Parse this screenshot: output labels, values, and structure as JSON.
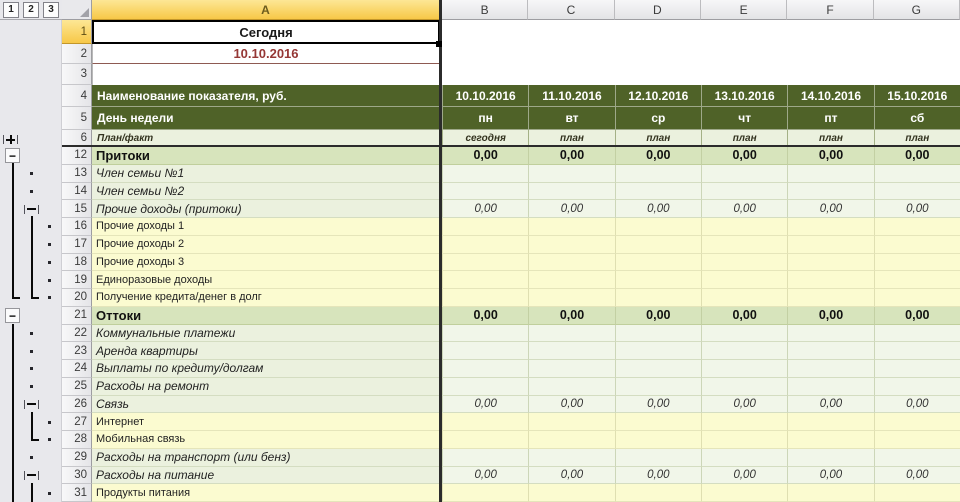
{
  "outline_levels": [
    "1",
    "2",
    "3"
  ],
  "columns": [
    "A",
    "B",
    "C",
    "D",
    "E",
    "F",
    "G"
  ],
  "top_row_nums": [
    "1",
    "2",
    "3",
    "4",
    "5",
    "6"
  ],
  "a1": "Сегодня",
  "a2": "10.10.2016",
  "colors": {
    "dark_green": "#4f6228",
    "med_green": "#d7e4bc",
    "light_green": "#ebf1de",
    "pale_yellow": "#fbfbd0",
    "date_red": "#953735",
    "selection_gold": "#f7c848"
  },
  "header": {
    "indicator_label": "Наименование показателя, руб.",
    "dates": [
      "10.10.2016",
      "11.10.2016",
      "12.10.2016",
      "13.10.2016",
      "14.10.2016",
      "15.10.2016"
    ],
    "weekday_label": "День недели",
    "weekdays": [
      "пн",
      "вт",
      "ср",
      "чт",
      "пт",
      "сб"
    ],
    "planfact_label": "План/факт",
    "planfact": [
      "сегодня",
      "план",
      "план",
      "план",
      "план",
      "план"
    ]
  },
  "row6_marker": "plus1",
  "rows": [
    {
      "num": "12",
      "label": "Притоки",
      "style": "section",
      "marker": "minus1",
      "values": [
        "0,00",
        "0,00",
        "0,00",
        "0,00",
        "0,00",
        "0,00"
      ]
    },
    {
      "num": "13",
      "label": "Член семьи №1",
      "style": "green",
      "marker": "dot2"
    },
    {
      "num": "14",
      "label": "Член семьи №2",
      "style": "green",
      "marker": "dot2"
    },
    {
      "num": "15",
      "label": "Прочие доходы (притоки)",
      "style": "green",
      "marker": "minus2",
      "values": [
        "0,00",
        "0,00",
        "0,00",
        "0,00",
        "0,00",
        "0,00"
      ]
    },
    {
      "num": "16",
      "label": "Прочие доходы 1",
      "style": "yellow",
      "marker": "dot3"
    },
    {
      "num": "17",
      "label": "Прочие доходы 2",
      "style": "yellow",
      "marker": "dot3"
    },
    {
      "num": "18",
      "label": "Прочие доходы 3",
      "style": "yellow",
      "marker": "dot3"
    },
    {
      "num": "19",
      "label": "Единоразовые доходы",
      "style": "yellow",
      "marker": "dot3"
    },
    {
      "num": "20",
      "label": "Получение кредита/денег в долг",
      "style": "yellow",
      "marker": "dot3"
    },
    {
      "num": "21",
      "label": "Оттоки",
      "style": "section",
      "marker": "minus1",
      "values": [
        "0,00",
        "0,00",
        "0,00",
        "0,00",
        "0,00",
        "0,00"
      ]
    },
    {
      "num": "22",
      "label": "Коммунальные платежи",
      "style": "green",
      "marker": "dot2"
    },
    {
      "num": "23",
      "label": "Аренда квартиры",
      "style": "green",
      "marker": "dot2"
    },
    {
      "num": "24",
      "label": "Выплаты по кредиту/долгам",
      "style": "green",
      "marker": "dot2"
    },
    {
      "num": "25",
      "label": "Расходы на ремонт",
      "style": "green",
      "marker": "dot2"
    },
    {
      "num": "26",
      "label": "Связь",
      "style": "green",
      "marker": "minus2",
      "values": [
        "0,00",
        "0,00",
        "0,00",
        "0,00",
        "0,00",
        "0,00"
      ]
    },
    {
      "num": "27",
      "label": "Интернет",
      "style": "yellow",
      "marker": "dot3"
    },
    {
      "num": "28",
      "label": "Мобильная связь",
      "style": "yellow",
      "marker": "dot3"
    },
    {
      "num": "29",
      "label": "Расходы на транспорт (или бенз)",
      "style": "green",
      "marker": "dot2"
    },
    {
      "num": "30",
      "label": "Расходы на питание",
      "style": "green",
      "marker": "minus2",
      "values": [
        "0,00",
        "0,00",
        "0,00",
        "0,00",
        "0,00",
        "0,00"
      ]
    },
    {
      "num": "31",
      "label": "Продукты питания",
      "style": "yellow",
      "marker": "dot3"
    }
  ]
}
